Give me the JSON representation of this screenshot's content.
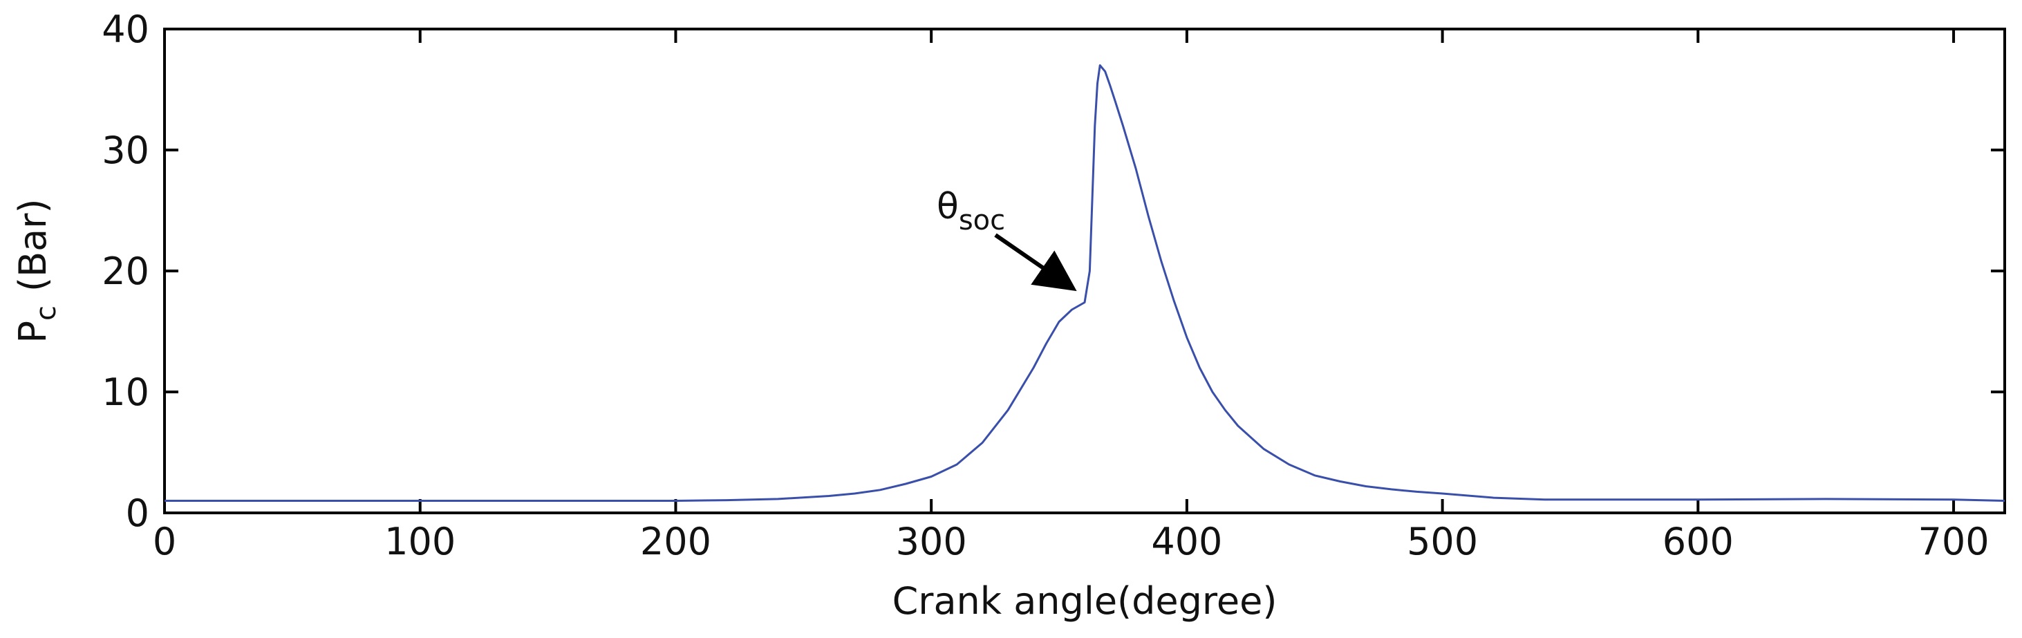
{
  "chart_data": {
    "type": "line",
    "title": "",
    "xlabel": "Crank angle(degree)",
    "ylabel": {
      "base": "P",
      "subscript": "c",
      "unit": "(Bar)"
    },
    "xlim": [
      0,
      720
    ],
    "ylim": [
      0,
      40
    ],
    "x_ticks": [
      0,
      100,
      200,
      300,
      400,
      500,
      600,
      700
    ],
    "y_ticks": [
      0,
      10,
      20,
      30,
      40
    ],
    "grid": false,
    "legend": "none",
    "line_color": "#3a4faa",
    "series": [
      {
        "x": [
          0,
          50,
          100,
          150,
          200,
          220,
          240,
          260,
          270,
          280,
          290,
          300,
          310,
          320,
          330,
          340,
          345,
          350,
          355,
          360,
          362,
          363,
          364,
          365,
          366,
          368,
          370,
          372,
          375,
          380,
          385,
          390,
          395,
          400,
          405,
          410,
          415,
          420,
          430,
          440,
          450,
          460,
          470,
          480,
          490,
          500,
          520,
          540,
          560,
          600,
          650,
          700,
          720
        ],
        "y": [
          1.0,
          1.0,
          1.0,
          1.0,
          1.0,
          1.05,
          1.15,
          1.4,
          1.6,
          1.9,
          2.4,
          3.0,
          4.0,
          5.8,
          8.5,
          12.0,
          14.0,
          15.8,
          16.8,
          17.4,
          20.0,
          26.0,
          32.0,
          35.5,
          37.0,
          36.5,
          35.3,
          34.0,
          32.0,
          28.5,
          24.5,
          20.8,
          17.5,
          14.5,
          12.0,
          10.0,
          8.5,
          7.2,
          5.3,
          4.0,
          3.1,
          2.6,
          2.2,
          1.95,
          1.75,
          1.6,
          1.25,
          1.1,
          1.1,
          1.1,
          1.15,
          1.1,
          1.0
        ]
      }
    ],
    "annotations": [
      {
        "text": "θ",
        "subscript": "soc",
        "points_to": {
          "x": 361,
          "y": 17.5
        }
      }
    ]
  }
}
